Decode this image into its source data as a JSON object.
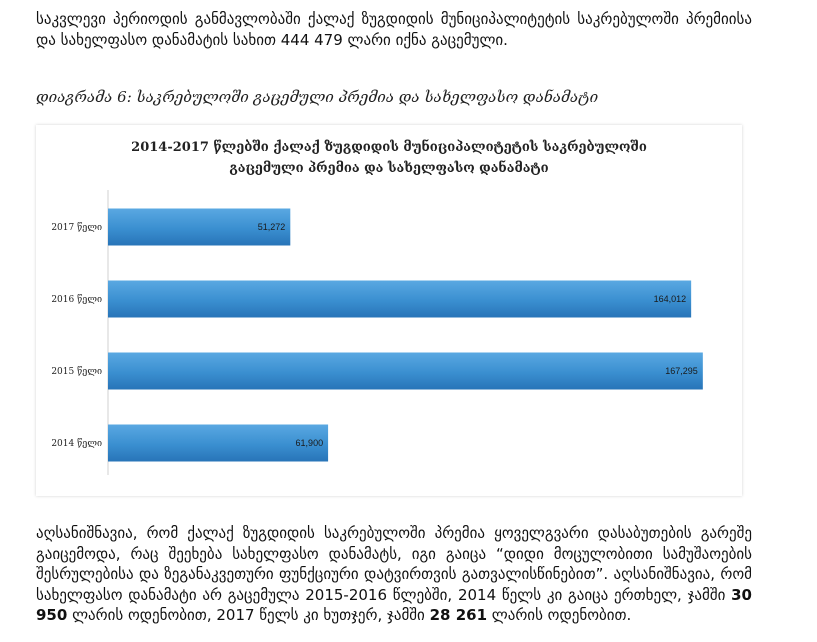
{
  "para1": "საკვლევი პერიოდის განმავლობაში ქალაქ ზუგდიდის მუნიციპალიტეტის საკრებულოში პრემიისა და სახელფასო დანამატის სახით 444 479 ლარი იქნა გაცემული.",
  "caption": "დიაგრამა 6: საკრებულოში გაცემული პრემია და სახელფასო დანამატი",
  "chart_data": {
    "type": "bar",
    "orientation": "horizontal",
    "title_line1": "2014-2017 წლებში ქალაქ ზუგდიდის მუნიციპალიტეტის საკრებულოში",
    "title_line2": "გაცემული პრემია და სახელფასო დანამატი",
    "categories": [
      "2017 წელი",
      "2016 წელი",
      "2015 წელი",
      "2014 წელი"
    ],
    "values": [
      51272,
      164012,
      167295,
      61900
    ],
    "value_labels": [
      "51,272",
      "164,012",
      "167,295",
      "61,900"
    ],
    "xlim": [
      0,
      180000
    ],
    "grid": false,
    "bar_color": "#3a8fd0"
  },
  "para2": {
    "text_a": "აღსანიშნავია, რომ ქალაქ ზუგდიდის საკრებულოში პრემია ყოველგვარი დასაბუთების გარეშე გაიცემოდა, რაც შეეხება სახელფასო დანამატს, იგი გაიცა “დიდი მოცულობითი სამუშაოების შესრულებისა და ზეგანაკვეთური ფუნქციური დატვირთვის გათვალისწინებით”. აღსანიშნავია, რომ სახელფასო დანამატი არ გაცემულა 2015-2016 წლებში, 2014 წელს კი გაიცა ერთხელ, ჯამში ",
    "bold_a": "30 950",
    "text_b": " ლარის ოდენობით, 2017 წელს კი ხუთჯერ, ჯამში ",
    "bold_b": "28 261",
    "text_c": " ლარის ოდენობით."
  }
}
